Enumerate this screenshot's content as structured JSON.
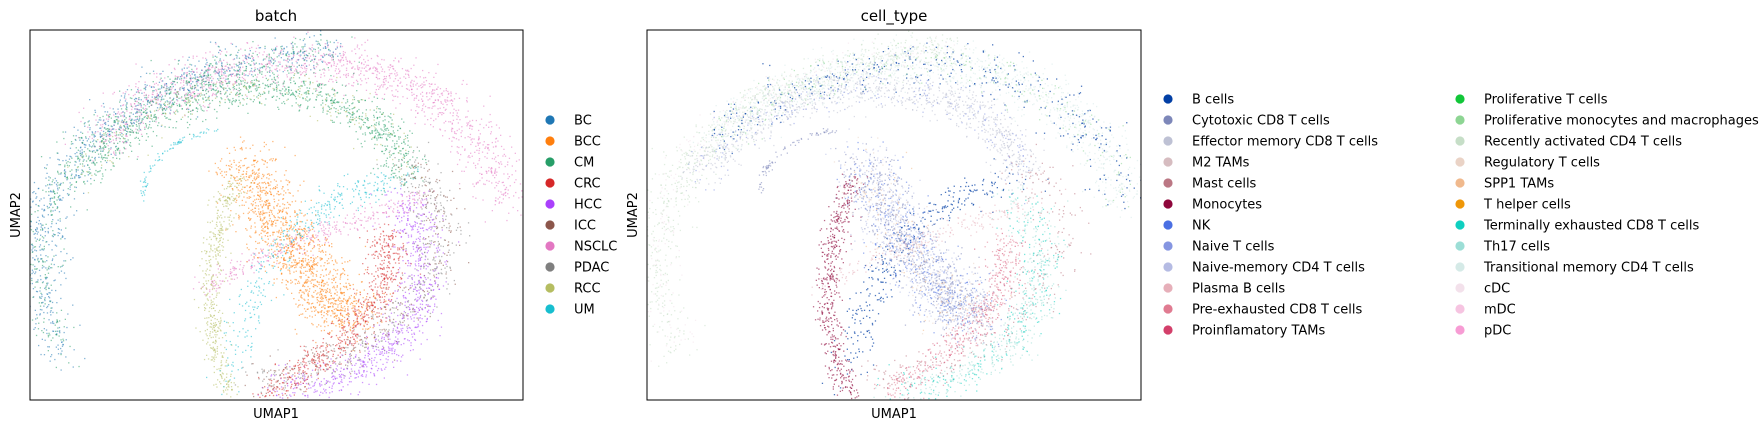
{
  "chart_data": [
    {
      "type": "scatter",
      "title": "batch",
      "xlabel": "UMAP1",
      "ylabel": "UMAP2",
      "ticks": "none",
      "grid": false,
      "legend_placement": "right",
      "series": [
        {
          "name": "BC",
          "color": "#1f77b4"
        },
        {
          "name": "BCC",
          "color": "#ff7f0e"
        },
        {
          "name": "CM",
          "color": "#279e68"
        },
        {
          "name": "CRC",
          "color": "#d62728"
        },
        {
          "name": "HCC",
          "color": "#aa40fc"
        },
        {
          "name": "ICC",
          "color": "#8c564b"
        },
        {
          "name": "NSCLC",
          "color": "#e377c2"
        },
        {
          "name": "PDAC",
          "color": "#7f7f7f"
        },
        {
          "name": "RCC",
          "color": "#b5bd61"
        },
        {
          "name": "UM",
          "color": "#17becf"
        }
      ]
    },
    {
      "type": "scatter",
      "title": "cell_type",
      "xlabel": "UMAP1",
      "ylabel": "UMAP2",
      "ticks": "none",
      "grid": false,
      "legend_placement": "right",
      "legend_columns": 2,
      "series": [
        {
          "name": "B cells",
          "color": "#023fa5"
        },
        {
          "name": "Cytotoxic CD8 T cells",
          "color": "#7d87b9"
        },
        {
          "name": "Effector memory CD8 T cells",
          "color": "#bec1d4"
        },
        {
          "name": "M2 TAMs",
          "color": "#d6bcc0"
        },
        {
          "name": "Mast cells",
          "color": "#bb7784"
        },
        {
          "name": "Monocytes",
          "color": "#8e063b"
        },
        {
          "name": "NK",
          "color": "#4a6fe3"
        },
        {
          "name": "Naive T cells",
          "color": "#8595e1"
        },
        {
          "name": "Naive-memory CD4 T cells",
          "color": "#b5bbe3"
        },
        {
          "name": "Plasma B cells",
          "color": "#e6afb9"
        },
        {
          "name": "Pre-exhausted CD8 T cells",
          "color": "#e07b91"
        },
        {
          "name": "Proinflamatory TAMs",
          "color": "#d33f6a"
        },
        {
          "name": "Proliferative T cells",
          "color": "#11c638"
        },
        {
          "name": "Proliferative monocytes and macrophages",
          "color": "#8dd593"
        },
        {
          "name": "Recently activated CD4 T cells",
          "color": "#c6dec7"
        },
        {
          "name": "Regulatory T cells",
          "color": "#ead3c6"
        },
        {
          "name": "SPP1 TAMs",
          "color": "#f0b98d"
        },
        {
          "name": "T helper cells",
          "color": "#ef9708"
        },
        {
          "name": "Terminally exhausted CD8 T cells",
          "color": "#0fcfc0"
        },
        {
          "name": "Th17 cells",
          "color": "#9cded6"
        },
        {
          "name": "Transitional memory CD4 T cells",
          "color": "#d5eae7"
        },
        {
          "name": "cDC",
          "color": "#f3e1eb"
        },
        {
          "name": "mDC",
          "color": "#f6c4e1"
        },
        {
          "name": "pDC",
          "color": "#f79cd4"
        }
      ]
    }
  ]
}
